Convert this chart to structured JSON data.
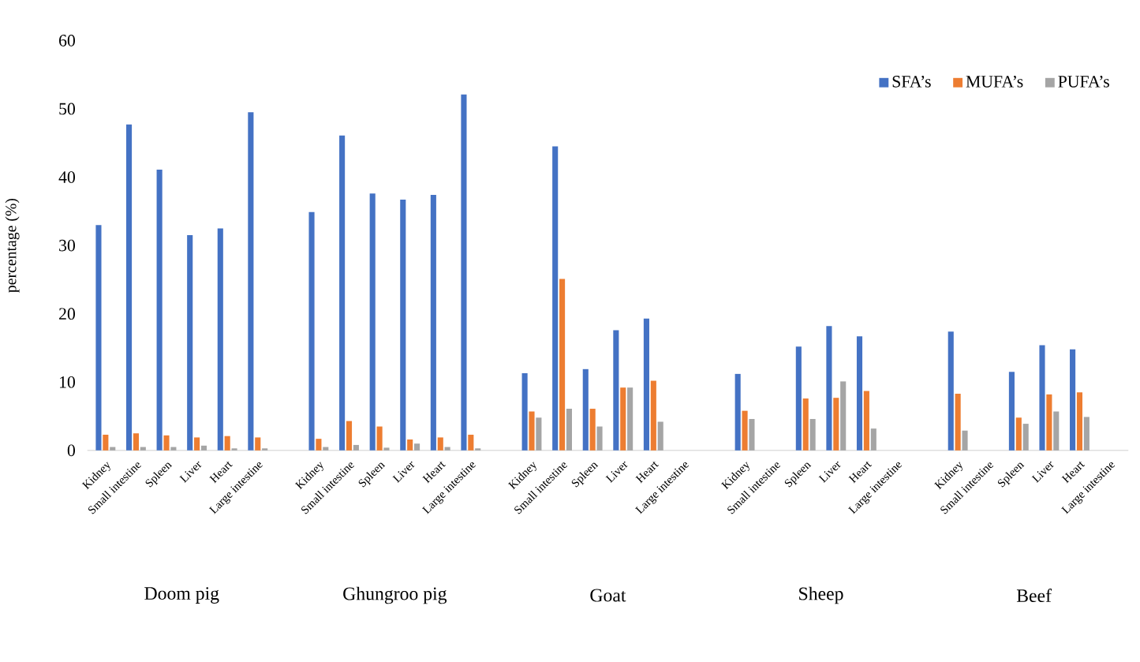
{
  "chart_data": {
    "type": "bar",
    "ylabel": "percentage (%)",
    "categories": [
      "Kidney",
      "Small intestine",
      "Spleen",
      "Liver",
      "Heart",
      "Large intestine",
      null,
      "Kidney",
      "Small intestine",
      "Spleen",
      "Liver",
      "Heart",
      "Large intestine",
      null,
      "Kidney",
      "Small intestine",
      "Spleen",
      "Liver",
      "Heart",
      "Large intestine",
      null,
      "Kidney",
      "Small intestine",
      "Spleen",
      "Liver",
      "Heart",
      "Large intestine",
      null,
      "Kidney",
      "Small intestine",
      "Spleen",
      "Liver",
      "Heart",
      "Large intestine"
    ],
    "series": [
      {
        "name": "SFA’s",
        "color": "#4472c4",
        "values": [
          33,
          47.7,
          41.1,
          31.5,
          32.5,
          49.5,
          null,
          34.9,
          46.1,
          37.6,
          36.7,
          37.4,
          52.1,
          null,
          11.3,
          44.5,
          11.9,
          17.6,
          19.3,
          null,
          null,
          11.2,
          null,
          15.2,
          18.2,
          16.7,
          null,
          null,
          17.4,
          null,
          11.5,
          15.4,
          14.8,
          null
        ]
      },
      {
        "name": "MUFA’s",
        "color": "#ed7d31",
        "values": [
          2.3,
          2.5,
          2.2,
          1.9,
          2.1,
          1.9,
          null,
          1.7,
          4.3,
          3.5,
          1.6,
          1.9,
          2.3,
          null,
          5.7,
          25.1,
          6.1,
          9.2,
          10.2,
          null,
          null,
          5.8,
          null,
          7.6,
          7.7,
          8.7,
          null,
          null,
          8.3,
          null,
          4.8,
          8.2,
          8.5,
          null
        ]
      },
      {
        "name": "PUFA’s",
        "color": "#a5a5a5",
        "values": [
          0.5,
          0.5,
          0.5,
          0.7,
          0.3,
          0.3,
          null,
          0.5,
          0.8,
          0.4,
          1.0,
          0.5,
          0.3,
          null,
          4.8,
          6.1,
          3.5,
          9.2,
          4.2,
          null,
          null,
          4.6,
          null,
          4.6,
          10.1,
          3.2,
          null,
          null,
          2.9,
          null,
          3.9,
          5.7,
          4.9,
          null
        ]
      }
    ],
    "annotations": [
      "Doom pig",
      "Ghungroo pig",
      "Goat",
      "Sheep",
      "Beef"
    ],
    "ylim": [
      0,
      60
    ],
    "yticks": [
      0,
      10,
      20,
      30,
      40,
      50,
      60
    ],
    "legend": "top right"
  }
}
